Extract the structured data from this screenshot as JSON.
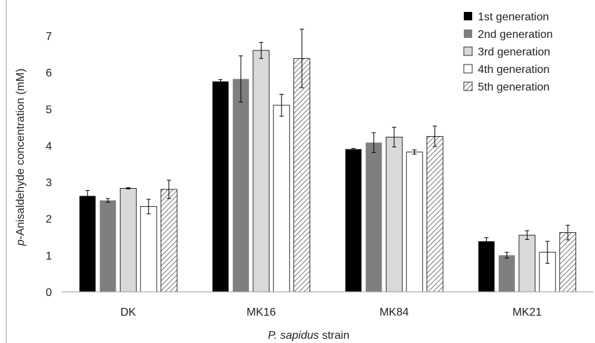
{
  "chart_data": {
    "type": "bar",
    "title": "",
    "xlabel_italic": "P. sapidus",
    "xlabel_rest": " strain",
    "ylabel_italic": "p",
    "ylabel_rest": "-Anisaldehyde concentration (mM)",
    "ylim": [
      0,
      7
    ],
    "yticks": [
      "0",
      "1",
      "2",
      "3",
      "4",
      "5",
      "6",
      "7"
    ],
    "categories": [
      "DK",
      "MK16",
      "MK84",
      "MK21"
    ],
    "legend_position": "top-right",
    "grid": false,
    "series": [
      {
        "name": "1st generation",
        "style": "black",
        "values": [
          2.62,
          5.75,
          3.9,
          1.38
        ],
        "errors": [
          0.15,
          0.05,
          0.02,
          0.1
        ]
      },
      {
        "name": "2nd generation",
        "style": "dark-gray",
        "values": [
          2.5,
          5.82,
          4.08,
          1.0
        ],
        "errors": [
          0.05,
          0.63,
          0.27,
          0.08
        ]
      },
      {
        "name": "3rd generation",
        "style": "light-gray",
        "values": [
          2.83,
          6.6,
          4.23,
          1.55
        ],
        "errors": [
          0.02,
          0.22,
          0.27,
          0.12
        ]
      },
      {
        "name": "4th generation",
        "style": "white",
        "values": [
          2.33,
          5.1,
          3.82,
          1.08
        ],
        "errors": [
          0.2,
          0.3,
          0.06,
          0.3
        ]
      },
      {
        "name": "5th generation",
        "style": "hatched",
        "values": [
          2.8,
          6.38,
          4.25,
          1.62
        ],
        "errors": [
          0.25,
          0.8,
          0.28,
          0.2
        ]
      }
    ]
  },
  "colors": {
    "black": "#000000",
    "dark-gray": "#7f7f7f",
    "light-gray": "#d9d9d9",
    "white": "#ffffff",
    "hatched": "#7f7f7f",
    "axis": "#888888"
  }
}
